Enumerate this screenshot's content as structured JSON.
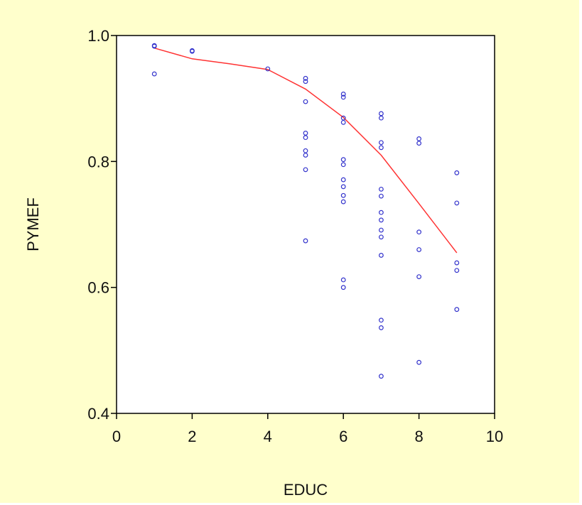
{
  "chart_data": {
    "type": "scatter",
    "title": "",
    "xlabel": "EDUC",
    "ylabel": "PYMEF",
    "xlim": [
      0,
      10
    ],
    "ylim": [
      0.4,
      1.0
    ],
    "xticks": [
      0,
      2,
      4,
      6,
      8,
      10
    ],
    "yticks": [
      0.4,
      0.6,
      0.8,
      1.0
    ],
    "xtick_labels": [
      "0",
      "2",
      "4",
      "6",
      "8",
      "10"
    ],
    "ytick_labels": [
      "0.4",
      "0.6",
      "0.8",
      "1.0"
    ],
    "grid": false,
    "legend": "none",
    "background_color": "#ffffcc",
    "plot_background_color": "#ffffff",
    "point_color": "#3333cc",
    "line_color": "#ff3333",
    "series": [
      {
        "type": "scatter",
        "points": [
          {
            "x": 1,
            "y": 0.984
          },
          {
            "x": 1,
            "y": 0.983
          },
          {
            "x": 1,
            "y": 0.939
          },
          {
            "x": 2,
            "y": 0.976
          },
          {
            "x": 2,
            "y": 0.975
          },
          {
            "x": 4,
            "y": 0.947
          },
          {
            "x": 5,
            "y": 0.932
          },
          {
            "x": 5,
            "y": 0.927
          },
          {
            "x": 5,
            "y": 0.895
          },
          {
            "x": 5,
            "y": 0.845
          },
          {
            "x": 5,
            "y": 0.838
          },
          {
            "x": 5,
            "y": 0.817
          },
          {
            "x": 5,
            "y": 0.81
          },
          {
            "x": 5,
            "y": 0.787
          },
          {
            "x": 5,
            "y": 0.674
          },
          {
            "x": 6,
            "y": 0.907
          },
          {
            "x": 6,
            "y": 0.902
          },
          {
            "x": 6,
            "y": 0.869
          },
          {
            "x": 6,
            "y": 0.862
          },
          {
            "x": 6,
            "y": 0.803
          },
          {
            "x": 6,
            "y": 0.795
          },
          {
            "x": 6,
            "y": 0.771
          },
          {
            "x": 6,
            "y": 0.76
          },
          {
            "x": 6,
            "y": 0.746
          },
          {
            "x": 6,
            "y": 0.736
          },
          {
            "x": 6,
            "y": 0.612
          },
          {
            "x": 6,
            "y": 0.6
          },
          {
            "x": 7,
            "y": 0.876
          },
          {
            "x": 7,
            "y": 0.869
          },
          {
            "x": 7,
            "y": 0.83
          },
          {
            "x": 7,
            "y": 0.822
          },
          {
            "x": 7,
            "y": 0.756
          },
          {
            "x": 7,
            "y": 0.745
          },
          {
            "x": 7,
            "y": 0.719
          },
          {
            "x": 7,
            "y": 0.707
          },
          {
            "x": 7,
            "y": 0.691
          },
          {
            "x": 7,
            "y": 0.68
          },
          {
            "x": 7,
            "y": 0.651
          },
          {
            "x": 7,
            "y": 0.548
          },
          {
            "x": 7,
            "y": 0.536
          },
          {
            "x": 7,
            "y": 0.459
          },
          {
            "x": 8,
            "y": 0.836
          },
          {
            "x": 8,
            "y": 0.829
          },
          {
            "x": 8,
            "y": 0.688
          },
          {
            "x": 8,
            "y": 0.66
          },
          {
            "x": 8,
            "y": 0.617
          },
          {
            "x": 8,
            "y": 0.481
          },
          {
            "x": 9,
            "y": 0.782
          },
          {
            "x": 9,
            "y": 0.734
          },
          {
            "x": 9,
            "y": 0.639
          },
          {
            "x": 9,
            "y": 0.627
          },
          {
            "x": 9,
            "y": 0.565
          }
        ]
      },
      {
        "type": "line",
        "points": [
          {
            "x": 1,
            "y": 0.98
          },
          {
            "x": 2,
            "y": 0.963
          },
          {
            "x": 3,
            "y": 0.955
          },
          {
            "x": 4,
            "y": 0.946
          },
          {
            "x": 5,
            "y": 0.915
          },
          {
            "x": 6,
            "y": 0.87
          },
          {
            "x": 7,
            "y": 0.81
          },
          {
            "x": 8,
            "y": 0.733
          },
          {
            "x": 9,
            "y": 0.655
          }
        ]
      }
    ]
  }
}
